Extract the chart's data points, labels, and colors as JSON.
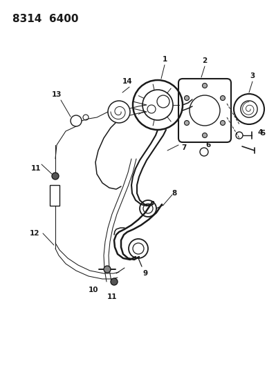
{
  "title": "8314  6400",
  "bg_color": "#ffffff",
  "line_color": "#1a1a1a",
  "label_color": "#1a1a1a",
  "label_fontsize": 7.5,
  "figsize": [
    3.99,
    5.33
  ],
  "dpi": 100
}
